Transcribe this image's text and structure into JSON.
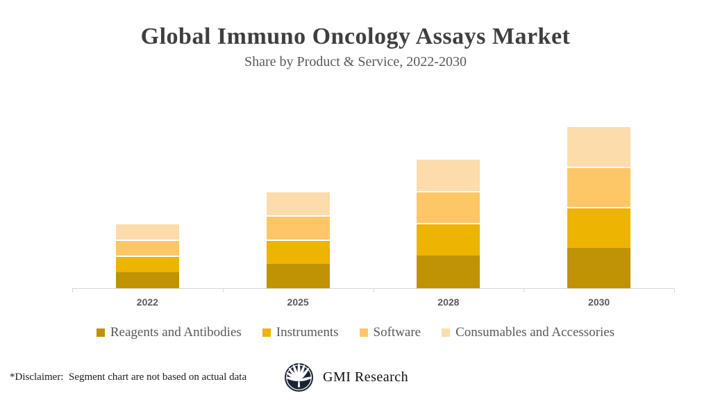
{
  "title": "Global Immuno Oncology Assays Market",
  "subtitle": "Share by Product & Service, 2022-2030",
  "chart_data": {
    "type": "bar",
    "stacked": true,
    "title": "Global Immuno Oncology Assays Market",
    "subtitle": "Share by Product & Service, 2022-2030",
    "categories": [
      "2022",
      "2025",
      "2028",
      "2030"
    ],
    "series": [
      {
        "name": "Reagents and Antibodies",
        "color": "#C09206",
        "values": [
          1.0,
          1.5,
          2.0,
          2.5
        ]
      },
      {
        "name": "Instruments",
        "color": "#EDB401",
        "values": [
          1.0,
          1.5,
          2.0,
          2.5
        ]
      },
      {
        "name": "Software",
        "color": "#FDC767",
        "values": [
          1.0,
          1.5,
          2.0,
          2.5
        ]
      },
      {
        "name": "Consumables and Accessories",
        "color": "#FCDCAB",
        "values": [
          1.0,
          1.5,
          2.0,
          2.5
        ]
      }
    ],
    "stack_totals": [
      4,
      6,
      8,
      10
    ],
    "units": "arbitrary units (illustrative, not actual data)",
    "xlabel": "",
    "ylabel": "",
    "ylim": [
      0,
      11.3
    ],
    "grid": false,
    "y_axis_shown": false,
    "legend_position": "bottom",
    "axis_color": "#D6D6D6",
    "label_color": "#595959"
  },
  "footer": {
    "disclaimer": "*Disclaimer:  Segment chart are not based on actual data",
    "brand": "GMI Research"
  },
  "colors": {
    "title": "#3F3F3F",
    "subtitle": "#595959",
    "logo_navy": "#1B2433"
  }
}
